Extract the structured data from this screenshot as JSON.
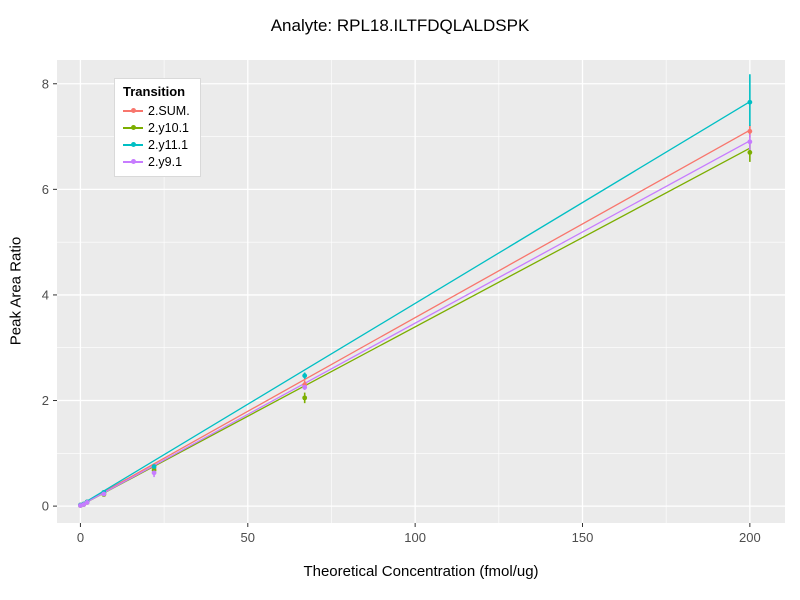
{
  "chart_data": {
    "type": "line",
    "title": "Analyte: RPL18.ILTFDQLALDSPK",
    "xlabel": "Theoretical Concentration (fmol/ug)",
    "ylabel": "Peak Area Ratio",
    "legend_title": "Transition",
    "legend_position": "inside-top-left",
    "grid": true,
    "xlim": [
      -7,
      210.5
    ],
    "ylim": [
      -0.32,
      8.45
    ],
    "x_ticks": [
      0,
      50,
      100,
      150,
      200
    ],
    "y_ticks": [
      0,
      2,
      4,
      6,
      8
    ],
    "x_minor_ticks": [
      25,
      75,
      125,
      175
    ],
    "y_minor_ticks": [
      1,
      3,
      5,
      7
    ],
    "colors": {
      "panel_bg": "#EBEBEB",
      "grid": "#FFFFFF",
      "tick_label": "#4D4D4D",
      "tick_mark": "#333333"
    },
    "x": [
      0,
      1,
      2,
      7,
      22,
      67,
      200
    ],
    "series": [
      {
        "name": "2.SUM.",
        "color": "#F8766D",
        "line": {
          "x0": 0,
          "y0": 0.02,
          "x1": 200,
          "y1": 7.12
        },
        "points": {
          "y": [
            0.02,
            0.04,
            0.08,
            0.24,
            0.72,
            2.3,
            7.1
          ],
          "lo": [
            0.02,
            0.04,
            0.08,
            0.24,
            0.7,
            2.24,
            6.98
          ],
          "hi": [
            0.02,
            0.04,
            0.08,
            0.24,
            0.74,
            2.38,
            7.22
          ]
        }
      },
      {
        "name": "2.y10.1",
        "color": "#7CAE00",
        "line": {
          "x0": 0,
          "y0": 0.01,
          "x1": 200,
          "y1": 6.78
        },
        "points": {
          "y": [
            0.01,
            0.03,
            0.07,
            0.22,
            0.68,
            2.05,
            6.7
          ],
          "lo": [
            0.01,
            0.03,
            0.07,
            0.22,
            0.66,
            1.95,
            6.52
          ],
          "hi": [
            0.01,
            0.03,
            0.07,
            0.22,
            0.7,
            2.15,
            6.92
          ]
        }
      },
      {
        "name": "2.y11.1",
        "color": "#00BFC4",
        "line": {
          "x0": 0,
          "y0": 0.02,
          "x1": 200,
          "y1": 7.66
        },
        "points": {
          "y": [
            0.02,
            0.04,
            0.08,
            0.26,
            0.75,
            2.47,
            7.65
          ],
          "lo": [
            0.02,
            0.04,
            0.08,
            0.26,
            0.73,
            2.41,
            7.2
          ],
          "hi": [
            0.02,
            0.04,
            0.08,
            0.26,
            0.77,
            2.53,
            8.18
          ]
        }
      },
      {
        "name": "2.y9.1",
        "color": "#C77CFF",
        "line": {
          "x0": 0,
          "y0": 0.01,
          "x1": 200,
          "y1": 6.92
        },
        "points": {
          "y": [
            0.01,
            0.03,
            0.07,
            0.23,
            0.63,
            2.25,
            6.9
          ],
          "lo": [
            0.01,
            0.03,
            0.07,
            0.23,
            0.55,
            2.2,
            6.74
          ],
          "hi": [
            0.01,
            0.03,
            0.07,
            0.23,
            0.7,
            2.3,
            7.04
          ]
        }
      }
    ]
  }
}
